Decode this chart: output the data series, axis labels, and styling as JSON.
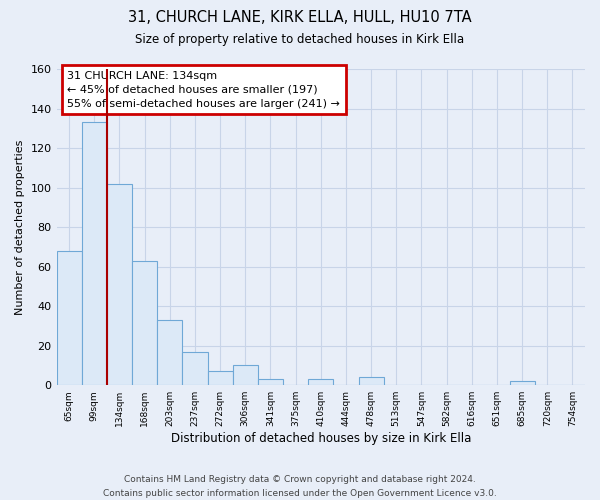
{
  "title1": "31, CHURCH LANE, KIRK ELLA, HULL, HU10 7TA",
  "title2": "Size of property relative to detached houses in Kirk Ella",
  "xlabel": "Distribution of detached houses by size in Kirk Ella",
  "ylabel": "Number of detached properties",
  "bin_labels": [
    "65sqm",
    "99sqm",
    "134sqm",
    "168sqm",
    "203sqm",
    "237sqm",
    "272sqm",
    "306sqm",
    "341sqm",
    "375sqm",
    "410sqm",
    "444sqm",
    "478sqm",
    "513sqm",
    "547sqm",
    "582sqm",
    "616sqm",
    "651sqm",
    "685sqm",
    "720sqm",
    "754sqm"
  ],
  "bar_heights": [
    68,
    133,
    102,
    63,
    33,
    17,
    7,
    10,
    3,
    0,
    3,
    0,
    4,
    0,
    0,
    0,
    0,
    0,
    2,
    0,
    0
  ],
  "bar_face_color": "#dce9f7",
  "bar_edge_color": "#6fa8d6",
  "vline_color": "#aa0000",
  "vline_bar_index": 2,
  "annotation_text": "31 CHURCH LANE: 134sqm\n← 45% of detached houses are smaller (197)\n55% of semi-detached houses are larger (241) →",
  "annotation_box_facecolor": "#ffffff",
  "annotation_border_color": "#cc0000",
  "ylim": [
    0,
    160
  ],
  "yticks": [
    0,
    20,
    40,
    60,
    80,
    100,
    120,
    140,
    160
  ],
  "footer_text": "Contains HM Land Registry data © Crown copyright and database right 2024.\nContains public sector information licensed under the Open Government Licence v3.0.",
  "bg_color": "#e8eef8",
  "grid_color": "#c8d4e8"
}
